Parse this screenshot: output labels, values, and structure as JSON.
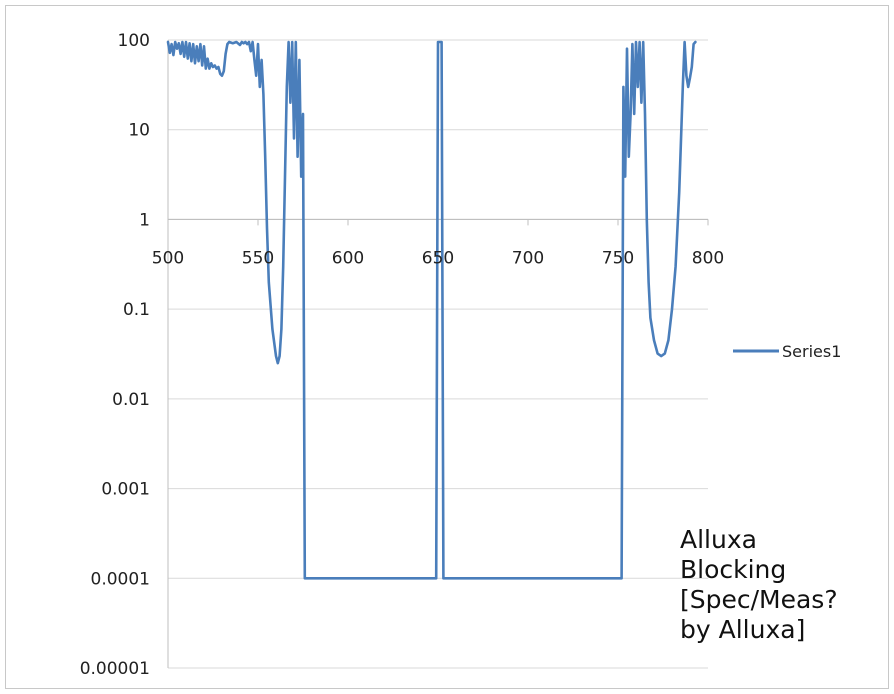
{
  "chart_data": {
    "type": "line",
    "title": "",
    "xlabel": "",
    "ylabel": "",
    "x_scale": "linear",
    "y_scale": "log",
    "xlim": [
      500,
      800
    ],
    "ylim": [
      1e-05,
      100
    ],
    "x_ticks": [
      "500",
      "550",
      "600",
      "650",
      "700",
      "750",
      "800"
    ],
    "y_ticks": [
      "100",
      "10",
      "1",
      "0.1",
      "0.01",
      "0.001",
      "0.0001",
      "0.00001"
    ],
    "x_axis_crosses_y_at": 1,
    "grid": "horizontal",
    "legend": {
      "position": "right",
      "entries": [
        "Series1"
      ]
    },
    "line_color": "#4a7ebb",
    "series": [
      {
        "name": "Series1",
        "points": [
          [
            500,
            95
          ],
          [
            501,
            72
          ],
          [
            502,
            90
          ],
          [
            503,
            68
          ],
          [
            504,
            95
          ],
          [
            505,
            80
          ],
          [
            506,
            92
          ],
          [
            507,
            70
          ],
          [
            508,
            95
          ],
          [
            509,
            65
          ],
          [
            510,
            95
          ],
          [
            511,
            62
          ],
          [
            512,
            92
          ],
          [
            513,
            58
          ],
          [
            514,
            90
          ],
          [
            515,
            55
          ],
          [
            516,
            85
          ],
          [
            517,
            58
          ],
          [
            518,
            90
          ],
          [
            519,
            52
          ],
          [
            520,
            85
          ],
          [
            521,
            48
          ],
          [
            522,
            62
          ],
          [
            523,
            48
          ],
          [
            524,
            55
          ],
          [
            525,
            50
          ],
          [
            526,
            52
          ],
          [
            527,
            48
          ],
          [
            528,
            50
          ],
          [
            529,
            42
          ],
          [
            530,
            40
          ],
          [
            531,
            45
          ],
          [
            532,
            70
          ],
          [
            533,
            90
          ],
          [
            534,
            95
          ],
          [
            536,
            92
          ],
          [
            538,
            95
          ],
          [
            540,
            88
          ],
          [
            541,
            95
          ],
          [
            542,
            92
          ],
          [
            543,
            95
          ],
          [
            544,
            90
          ],
          [
            545,
            95
          ],
          [
            546,
            75
          ],
          [
            547,
            95
          ],
          [
            548,
            60
          ],
          [
            549,
            40
          ],
          [
            550,
            90
          ],
          [
            551,
            30
          ],
          [
            552,
            60
          ],
          [
            553,
            25
          ],
          [
            554,
            5
          ],
          [
            555,
            0.8
          ],
          [
            556,
            0.2
          ],
          [
            558,
            0.06
          ],
          [
            560,
            0.03
          ],
          [
            561,
            0.025
          ],
          [
            562,
            0.03
          ],
          [
            563,
            0.06
          ],
          [
            564,
            0.3
          ],
          [
            565,
            3
          ],
          [
            566,
            30
          ],
          [
            567,
            95
          ],
          [
            568,
            20
          ],
          [
            569,
            95
          ],
          [
            570,
            8
          ],
          [
            571,
            95
          ],
          [
            572,
            5
          ],
          [
            573,
            60
          ],
          [
            574,
            3
          ],
          [
            575,
            15
          ],
          [
            576,
            0.0001
          ],
          [
            649,
            0.0001
          ],
          [
            650,
            95
          ],
          [
            651,
            95
          ],
          [
            652,
            95
          ],
          [
            653,
            0.0001
          ],
          [
            752,
            0.0001
          ],
          [
            753,
            30
          ],
          [
            754,
            3
          ],
          [
            755,
            80
          ],
          [
            756,
            5
          ],
          [
            757,
            15
          ],
          [
            758,
            90
          ],
          [
            759,
            15
          ],
          [
            760,
            95
          ],
          [
            761,
            30
          ],
          [
            762,
            95
          ],
          [
            763,
            20
          ],
          [
            764,
            95
          ],
          [
            765,
            15
          ],
          [
            766,
            1
          ],
          [
            767,
            0.2
          ],
          [
            768,
            0.08
          ],
          [
            770,
            0.045
          ],
          [
            772,
            0.032
          ],
          [
            774,
            0.03
          ],
          [
            776,
            0.032
          ],
          [
            778,
            0.045
          ],
          [
            780,
            0.1
          ],
          [
            782,
            0.3
          ],
          [
            784,
            2
          ],
          [
            786,
            30
          ],
          [
            787,
            95
          ],
          [
            788,
            40
          ],
          [
            789,
            30
          ],
          [
            790,
            38
          ],
          [
            791,
            50
          ],
          [
            792,
            90
          ],
          [
            793,
            95
          ]
        ]
      }
    ]
  },
  "annotation": {
    "text": "Alluxa\nBlocking\n[Spec/Meas?\nby Alluxa]"
  }
}
